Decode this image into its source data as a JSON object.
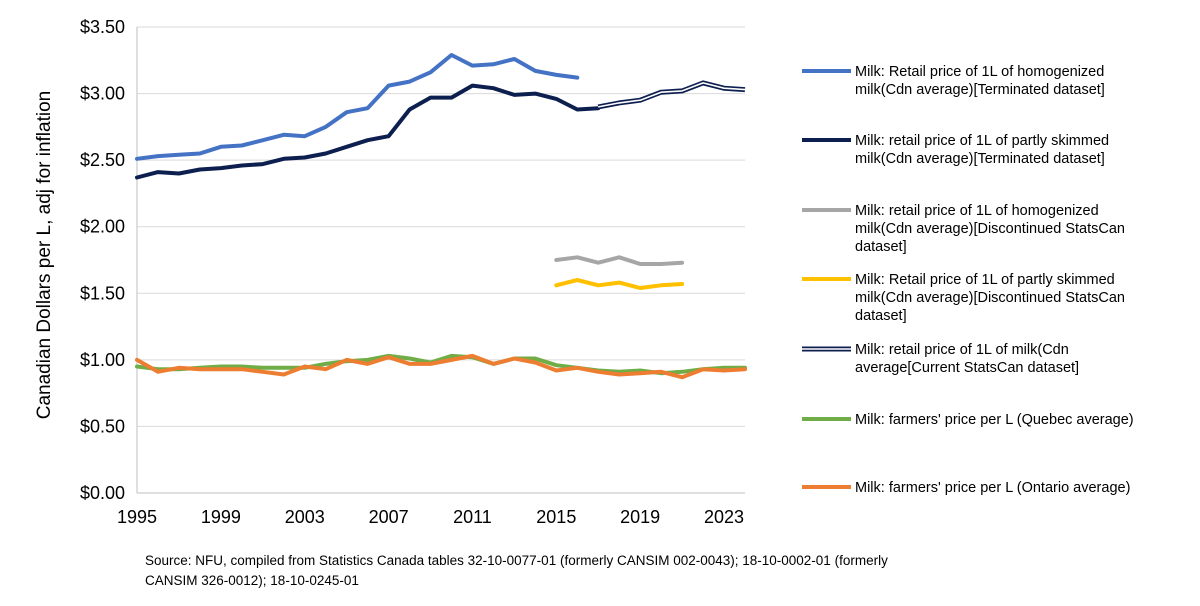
{
  "chart_data": {
    "type": "line",
    "ylabel": "Canadian Dollars per L, adj for inflation",
    "xlabel": "",
    "xlim": [
      1995,
      2024
    ],
    "ylim": [
      0,
      3.5
    ],
    "y_ticks": [
      0,
      0.5,
      1.0,
      1.5,
      2.0,
      2.5,
      3.0,
      3.5
    ],
    "y_tick_labels": [
      "$0.00",
      "$0.50",
      "$1.00",
      "$1.50",
      "$2.00",
      "$2.50",
      "$3.00",
      "$3.50"
    ],
    "x_ticks": [
      1995,
      1999,
      2003,
      2007,
      2011,
      2015,
      2019,
      2023
    ],
    "x_tick_labels": [
      "1995",
      "1999",
      "2003",
      "2007",
      "2011",
      "2015",
      "2019",
      "2023"
    ],
    "grid": "horizontal",
    "legend_position": "right",
    "source_lines": [
      "Source: NFU, compiled from Statistics Canada tables 32-10-0077-01 (formerly CANSIM 002-0043); 18-10-0002-01 (formerly",
      "CANSIM 326-0012); 18-10-0245-01"
    ],
    "series": [
      {
        "name": "homogenized-terminated",
        "legend_lines": [
          "Milk: Retail price of 1L of homogenized",
          "milk(Cdn average)[Terminated dataset]"
        ],
        "color": "#4472c4",
        "style": "solid",
        "x": [
          1995,
          1996,
          1997,
          1998,
          1999,
          2000,
          2001,
          2002,
          2003,
          2004,
          2005,
          2006,
          2007,
          2008,
          2009,
          2010,
          2011,
          2012,
          2013,
          2014,
          2015,
          2016
        ],
        "values": [
          2.51,
          2.53,
          2.54,
          2.55,
          2.6,
          2.61,
          2.65,
          2.69,
          2.68,
          2.75,
          2.86,
          2.89,
          3.06,
          3.09,
          3.16,
          3.29,
          3.21,
          3.22,
          3.26,
          3.17,
          3.14,
          3.12
        ]
      },
      {
        "name": "partly-skimmed-terminated",
        "legend_lines": [
          "Milk: retail price of 1L of partly skimmed",
          "milk(Cdn average)[Terminated dataset]"
        ],
        "color": "#0d1f4f",
        "style": "solid",
        "x": [
          1995,
          1996,
          1997,
          1998,
          1999,
          2000,
          2001,
          2002,
          2003,
          2004,
          2005,
          2006,
          2007,
          2008,
          2009,
          2010,
          2011,
          2012,
          2013,
          2014,
          2015,
          2016,
          2017
        ],
        "values": [
          2.37,
          2.41,
          2.4,
          2.43,
          2.44,
          2.46,
          2.47,
          2.51,
          2.52,
          2.55,
          2.6,
          2.65,
          2.68,
          2.88,
          2.97,
          2.97,
          3.06,
          3.04,
          2.99,
          3.0,
          2.96,
          2.88,
          2.89
        ]
      },
      {
        "name": "homogenized-discontinued",
        "legend_lines": [
          "Milk: retail price of 1L of homogenized",
          "milk(Cdn average)[Discontinued StatsCan",
          "dataset]"
        ],
        "color": "#a6a6a6",
        "style": "solid",
        "x": [
          2015,
          2016,
          2017,
          2018,
          2019,
          2020,
          2021
        ],
        "values": [
          1.75,
          1.77,
          1.73,
          1.77,
          1.72,
          1.72,
          1.73
        ]
      },
      {
        "name": "partly-skimmed-discontinued",
        "legend_lines": [
          "Milk: Retail price of 1L of partly skimmed",
          "milk(Cdn average)[Discontinued StatsCan",
          "dataset]"
        ],
        "color": "#ffc000",
        "style": "solid",
        "x": [
          2015,
          2016,
          2017,
          2018,
          2019,
          2020,
          2021
        ],
        "values": [
          1.56,
          1.6,
          1.56,
          1.58,
          1.54,
          1.56,
          1.57
        ]
      },
      {
        "name": "current-statscan",
        "legend_lines": [
          "Milk: retail price of 1L of milk(Cdn",
          "average[Current StatsCan dataset]"
        ],
        "color": "#0d1f4f",
        "style": "double",
        "x": [
          2017,
          2018,
          2019,
          2020,
          2021,
          2022,
          2023,
          2024
        ],
        "values": [
          2.9,
          2.93,
          2.95,
          3.01,
          3.02,
          3.08,
          3.04,
          3.03
        ]
      },
      {
        "name": "farmers-quebec",
        "legend_lines": [
          "Milk: farmers' price per L (Quebec average)"
        ],
        "color": "#70ad47",
        "style": "solid",
        "x": [
          1995,
          1996,
          1997,
          1998,
          1999,
          2000,
          2001,
          2002,
          2003,
          2004,
          2005,
          2006,
          2007,
          2008,
          2009,
          2010,
          2011,
          2012,
          2013,
          2014,
          2015,
          2016,
          2017,
          2018,
          2019,
          2020,
          2021,
          2022,
          2023,
          2024
        ],
        "values": [
          0.95,
          0.93,
          0.93,
          0.94,
          0.95,
          0.95,
          0.94,
          0.94,
          0.94,
          0.97,
          0.99,
          1.0,
          1.03,
          1.01,
          0.98,
          1.03,
          1.02,
          0.97,
          1.01,
          1.01,
          0.96,
          0.94,
          0.92,
          0.91,
          0.92,
          0.9,
          0.91,
          0.93,
          0.94,
          0.94
        ]
      },
      {
        "name": "farmers-ontario",
        "legend_lines": [
          "Milk: farmers' price per L (Ontario average)"
        ],
        "color": "#ed7d31",
        "style": "solid",
        "x": [
          1995,
          1996,
          1997,
          1998,
          1999,
          2000,
          2001,
          2002,
          2003,
          2004,
          2005,
          2006,
          2007,
          2008,
          2009,
          2010,
          2011,
          2012,
          2013,
          2014,
          2015,
          2016,
          2017,
          2018,
          2019,
          2020,
          2021,
          2022,
          2023,
          2024
        ],
        "values": [
          1.0,
          0.91,
          0.94,
          0.93,
          0.93,
          0.93,
          0.91,
          0.89,
          0.95,
          0.93,
          1.0,
          0.97,
          1.02,
          0.97,
          0.97,
          1.0,
          1.03,
          0.97,
          1.01,
          0.98,
          0.92,
          0.94,
          0.91,
          0.89,
          0.9,
          0.91,
          0.87,
          0.93,
          0.92,
          0.93
        ]
      }
    ]
  }
}
